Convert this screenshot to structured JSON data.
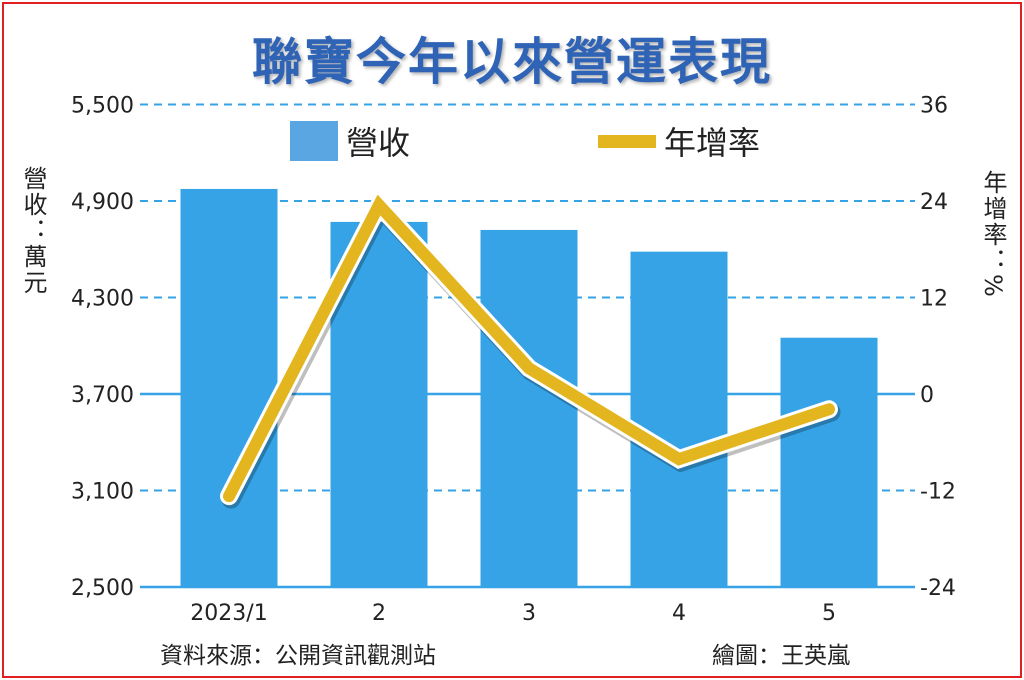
{
  "chart_data": {
    "type": "bar+line",
    "title": "聯寶今年以來營運表現",
    "categories": [
      "2023/1",
      "2",
      "3",
      "4",
      "5"
    ],
    "series": [
      {
        "name": "營收",
        "type": "bar",
        "axis": "left",
        "color": "#36a3e6",
        "values": [
          4975,
          4770,
          4720,
          4585,
          4050
        ]
      },
      {
        "name": "年增率",
        "type": "line",
        "axis": "right",
        "color": "#e3b51f",
        "values": [
          -12.7,
          23.5,
          3.2,
          -8.1,
          -1.9
        ]
      }
    ],
    "ylabel_left": "營收：萬元",
    "ylabel_right": "年增率：%",
    "ylim_left": [
      2500,
      5500
    ],
    "yticks_left": [
      "5,500",
      "4,900",
      "4,300",
      "3,700",
      "3,100",
      "2,500"
    ],
    "ylim_right": [
      -24,
      36
    ],
    "yticks_right": [
      "36",
      "24",
      "12",
      "0",
      "-12",
      "-24"
    ],
    "grid": true,
    "legend": "top"
  },
  "footer": {
    "source": "資料來源：公開資訊觀測站",
    "credit": "繪圖：王英嵐"
  },
  "colors": {
    "title": "#2f63b5",
    "grid": "#36a3e6",
    "border": "#e02020"
  }
}
